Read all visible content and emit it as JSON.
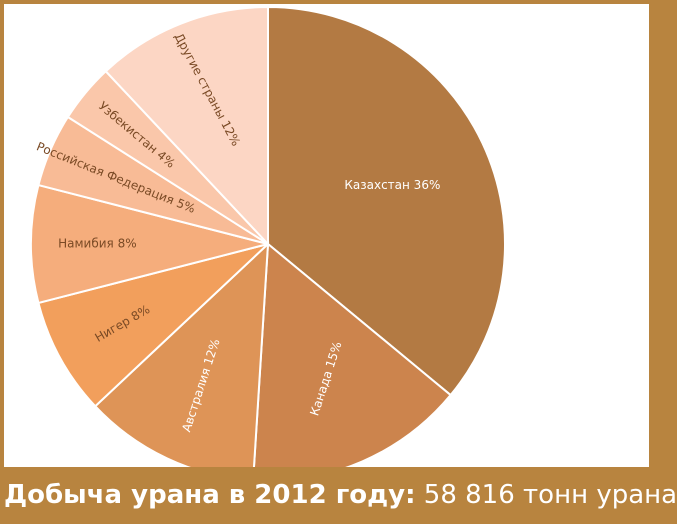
{
  "chart_data": {
    "type": "pie",
    "slices": [
      {
        "label": "Казахстан",
        "pct_text": "36%",
        "value": 36,
        "color": "#b37a43",
        "text_color": "#ffffff"
      },
      {
        "label": "Канада",
        "pct_text": "15%",
        "value": 15,
        "color": "#cc844d",
        "text_color": "#ffffff"
      },
      {
        "label": "Австралия",
        "pct_text": "12%",
        "value": 12,
        "color": "#de9457",
        "text_color": "#ffffff"
      },
      {
        "label": "Нигер",
        "pct_text": "8%",
        "value": 8,
        "color": "#f29f5c",
        "text_color": "#7a4a25"
      },
      {
        "label": "Намибия",
        "pct_text": "8%",
        "value": 8,
        "color": "#f5ad7c",
        "text_color": "#7a4a25"
      },
      {
        "label": "Российская Федерация",
        "pct_text": "5%",
        "value": 5,
        "color": "#f8bb96",
        "text_color": "#7a4a25"
      },
      {
        "label": "Узбекистан",
        "pct_text": "4%",
        "value": 4,
        "color": "#fac7aa",
        "text_color": "#7a4a25"
      },
      {
        "label": "Другие страны",
        "pct_text": "12%",
        "value": 12,
        "color": "#fcd6c4",
        "text_color": "#7a4a25"
      }
    ]
  },
  "footer": {
    "lead": "Добыча урана в 2012 году:",
    "rest": " 58 816 тонн урана"
  }
}
